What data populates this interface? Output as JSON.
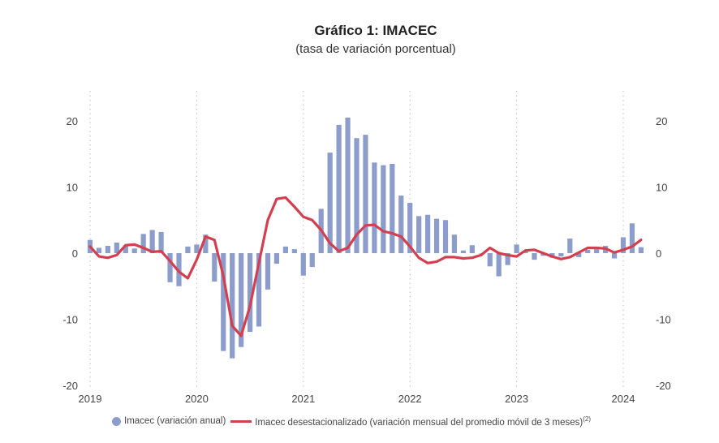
{
  "chart_data": {
    "type": "bar",
    "title": "Gráfico 1:  IMACEC",
    "subtitle": "(tasa de variación porcentual)",
    "ylim": [
      -20,
      25
    ],
    "yticks": [
      -20,
      -10,
      0,
      10,
      20
    ],
    "x_tick_labels": [
      "2019",
      "2020",
      "2021",
      "2022",
      "2023",
      "2024"
    ],
    "months": [
      "2019-01",
      "2019-02",
      "2019-03",
      "2019-04",
      "2019-05",
      "2019-06",
      "2019-07",
      "2019-08",
      "2019-09",
      "2019-10",
      "2019-11",
      "2019-12",
      "2020-01",
      "2020-02",
      "2020-03",
      "2020-04",
      "2020-05",
      "2020-06",
      "2020-07",
      "2020-08",
      "2020-09",
      "2020-10",
      "2020-11",
      "2020-12",
      "2021-01",
      "2021-02",
      "2021-03",
      "2021-04",
      "2021-05",
      "2021-06",
      "2021-07",
      "2021-08",
      "2021-09",
      "2021-10",
      "2021-11",
      "2021-12",
      "2022-01",
      "2022-02",
      "2022-03",
      "2022-04",
      "2022-05",
      "2022-06",
      "2022-07",
      "2022-08",
      "2022-09",
      "2022-10",
      "2022-11",
      "2022-12",
      "2023-01",
      "2023-02",
      "2023-03",
      "2023-04",
      "2023-05",
      "2023-06",
      "2023-07",
      "2023-08",
      "2023-09",
      "2023-10",
      "2023-11",
      "2023-12",
      "2024-01",
      "2024-02",
      "2024-03"
    ],
    "series": [
      {
        "name": "Imacec (variación anual)",
        "type": "bar",
        "color": "#8c9ccb",
        "values": [
          2.0,
          0.8,
          1.1,
          1.6,
          1.1,
          0.7,
          2.9,
          3.5,
          3.2,
          -4.4,
          -5.0,
          1.0,
          1.3,
          2.8,
          -4.3,
          -14.8,
          -15.9,
          -14.2,
          -11.9,
          -11.1,
          -5.5,
          -1.6,
          1.0,
          0.6,
          -3.4,
          -2.1,
          6.7,
          15.2,
          19.4,
          20.5,
          17.4,
          17.9,
          13.7,
          13.3,
          13.5,
          8.7,
          7.6,
          5.6,
          5.8,
          5.2,
          5.0,
          2.8,
          0.4,
          1.2,
          0.0,
          -2.0,
          -3.5,
          -1.8,
          1.3,
          0.4,
          -1.0,
          -0.4,
          -0.7,
          -0.5,
          2.2,
          -0.6,
          0.5,
          0.6,
          1.1,
          -0.8,
          2.4,
          4.5,
          0.9
        ]
      },
      {
        "name": "Imacec desestacionalizado (variación mensual del promedio móvil de 3 meses)",
        "name_footnote": "(2)",
        "type": "line",
        "color": "#d2404f",
        "values": [
          1.0,
          -0.5,
          -0.7,
          -0.3,
          1.2,
          1.3,
          0.8,
          0.2,
          0.3,
          -1.2,
          -2.8,
          -3.8,
          -1.0,
          2.5,
          2.0,
          -3.5,
          -11.0,
          -12.5,
          -8.0,
          -1.5,
          5.0,
          8.2,
          8.4,
          7.0,
          5.5,
          5.0,
          3.5,
          1.5,
          0.3,
          0.8,
          2.8,
          4.2,
          4.3,
          3.3,
          3.0,
          2.5,
          1.0,
          -0.7,
          -1.5,
          -1.3,
          -0.6,
          -0.6,
          -0.8,
          -0.7,
          -0.3,
          0.8,
          0.0,
          -0.3,
          -0.5,
          0.4,
          0.5,
          0.0,
          -0.5,
          -0.9,
          -0.6,
          0.1,
          0.8,
          0.8,
          0.7,
          0.1,
          0.5,
          1.0,
          2.0
        ]
      }
    ],
    "grid": "dotted vertical lines at year starts",
    "legend_position": "bottom"
  }
}
